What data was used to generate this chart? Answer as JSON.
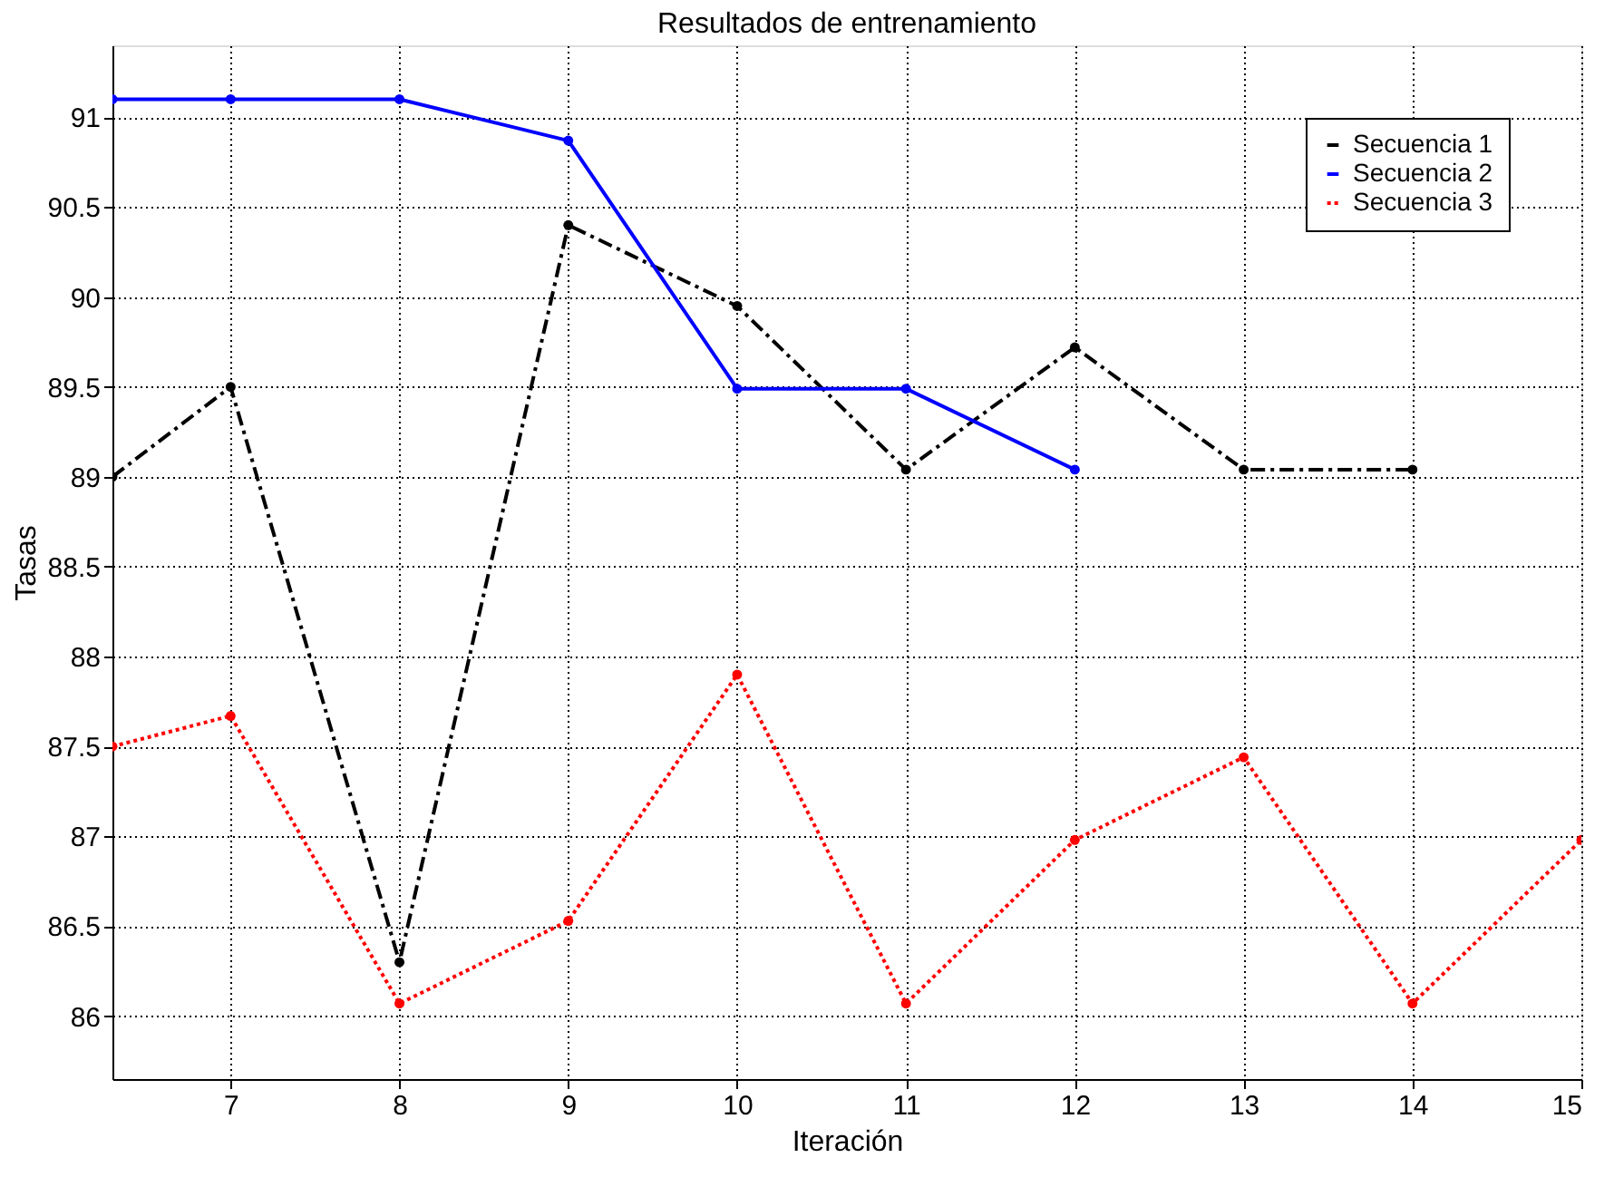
{
  "chart_data": {
    "type": "line",
    "title": "Resultados de entrenamiento",
    "xlabel": "Iteración",
    "ylabel": "Tasas",
    "xlim": [
      6.3,
      15
    ],
    "xticks": [
      7,
      8,
      9,
      10,
      11,
      12,
      13,
      14,
      15
    ],
    "ylim": [
      85.65,
      91.4
    ],
    "yticks": [
      86,
      86.5,
      87,
      87.5,
      88,
      88.5,
      89,
      89.5,
      90,
      90.5,
      91
    ],
    "grid": true,
    "legend": "top right",
    "marker": "circle",
    "series": [
      {
        "name": "Secuencia 1",
        "color": "#000000",
        "line_style": "dashed",
        "x": [
          6.3,
          7,
          8,
          9,
          10,
          11,
          12,
          13,
          14
        ],
        "values": [
          89.0,
          89.5,
          86.3,
          90.4,
          89.95,
          89.04,
          89.72,
          89.04,
          89.04
        ]
      },
      {
        "name": "Secuencia 2",
        "color": "#0000ff",
        "line_style": "solid",
        "x": [
          6.3,
          7,
          8,
          9,
          10,
          11,
          12
        ],
        "values": [
          91.1,
          91.1,
          91.1,
          90.87,
          89.49,
          89.49,
          89.04
        ]
      },
      {
        "name": "Secuencia 3",
        "color": "#ff0000",
        "line_style": "dotted",
        "x": [
          6.3,
          7,
          8,
          9,
          10,
          11,
          12,
          13,
          14,
          15
        ],
        "values": [
          87.5,
          87.67,
          86.07,
          86.53,
          87.9,
          86.07,
          86.98,
          87.44,
          86.07,
          86.98
        ]
      }
    ]
  }
}
